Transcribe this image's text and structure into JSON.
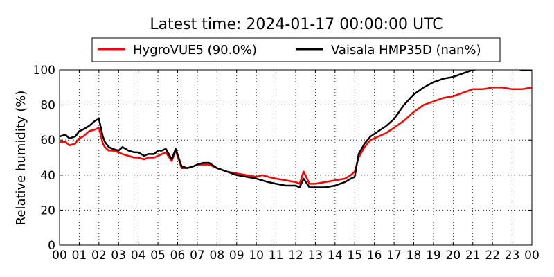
{
  "chart_data": {
    "type": "line",
    "title": "Latest time: 2024-01-17 00:00:00 UTC",
    "xlabel": "",
    "ylabel": "Relative humidity (%)",
    "xlim": [
      0,
      24
    ],
    "ylim": [
      0,
      100
    ],
    "x_tick_labels": [
      "00",
      "01",
      "02",
      "03",
      "04",
      "05",
      "06",
      "07",
      "08",
      "09",
      "10",
      "11",
      "12",
      "13",
      "14",
      "15",
      "16",
      "17",
      "18",
      "19",
      "20",
      "21",
      "22",
      "23",
      "00"
    ],
    "y_ticks": [
      0,
      20,
      40,
      60,
      80,
      100
    ],
    "grid": true,
    "legend_position": "top",
    "legend": [
      "HygroVUE5 (90.0%)",
      "Vaisala HMP35D (nan%)"
    ],
    "series": [
      {
        "name": "HygroVUE5 (90.0%)",
        "color": "#ff0000",
        "x": [
          0,
          0.3,
          0.5,
          0.8,
          1.0,
          1.2,
          1.5,
          1.8,
          2.0,
          2.2,
          2.3,
          2.5,
          2.7,
          3.0,
          3.2,
          3.5,
          3.8,
          4.0,
          4.3,
          4.5,
          4.8,
          5.0,
          5.2,
          5.4,
          5.7,
          5.9,
          6.2,
          6.5,
          6.8,
          7.0,
          7.3,
          7.6,
          8.0,
          8.5,
          9.0,
          9.5,
          10.0,
          10.3,
          10.6,
          11.0,
          11.5,
          12.0,
          12.2,
          12.4,
          12.7,
          13.0,
          13.5,
          14.0,
          14.5,
          14.8,
          15.0,
          15.2,
          15.5,
          15.8,
          16.2,
          16.6,
          17.0,
          17.5,
          18.0,
          18.5,
          19.0,
          19.5,
          20.0,
          20.5,
          21.0,
          21.5,
          22.0,
          22.5,
          23.0,
          23.5,
          24.0
        ],
        "y": [
          59,
          59,
          57,
          58,
          61,
          62,
          65,
          66,
          67,
          58,
          56,
          54,
          54,
          53,
          52,
          51,
          50,
          50,
          49,
          50,
          50,
          51,
          52,
          53,
          48,
          54,
          44,
          44,
          45,
          46,
          46,
          46,
          44,
          42,
          41,
          40,
          39,
          40,
          39,
          38,
          37,
          36,
          35,
          42,
          35,
          35,
          36,
          37,
          38,
          40,
          42,
          50,
          56,
          60,
          62,
          64,
          67,
          71,
          76,
          80,
          82,
          84,
          85,
          87,
          89,
          89,
          90,
          90,
          89,
          89,
          90
        ]
      },
      {
        "name": "Vaisala HMP35D (nan%)",
        "color": "#000000",
        "x": [
          0,
          0.3,
          0.5,
          0.8,
          1.0,
          1.2,
          1.5,
          1.8,
          2.0,
          2.2,
          2.3,
          2.5,
          2.7,
          3.0,
          3.2,
          3.5,
          3.8,
          4.0,
          4.3,
          4.5,
          4.8,
          5.0,
          5.2,
          5.4,
          5.7,
          5.9,
          6.2,
          6.5,
          6.8,
          7.0,
          7.3,
          7.6,
          8.0,
          8.5,
          9.0,
          9.5,
          10.0,
          10.3,
          10.6,
          11.0,
          11.5,
          12.0,
          12.2,
          12.4,
          12.7,
          13.0,
          13.5,
          14.0,
          14.5,
          14.8,
          15.0,
          15.2,
          15.5,
          15.8,
          16.2,
          16.6,
          17.0,
          17.5,
          18.0,
          18.5,
          19.0,
          19.5,
          20.0,
          20.5,
          21.0,
          21.5,
          22.0,
          22.5,
          23.0,
          23.5,
          24.0
        ],
        "y": [
          62,
          63,
          61,
          62,
          65,
          66,
          68,
          71,
          72,
          62,
          59,
          56,
          55,
          54,
          56,
          54,
          53,
          53,
          51,
          52,
          52,
          54,
          54,
          55,
          49,
          55,
          45,
          44,
          45,
          46,
          47,
          47,
          44,
          42,
          40,
          39,
          38,
          37,
          36,
          35,
          34,
          34,
          33,
          38,
          33,
          33,
          33,
          34,
          36,
          38,
          39,
          52,
          58,
          62,
          65,
          68,
          72,
          80,
          86,
          90,
          93,
          95,
          96,
          98,
          100,
          101,
          101,
          101,
          101,
          100,
          100
        ]
      }
    ]
  }
}
